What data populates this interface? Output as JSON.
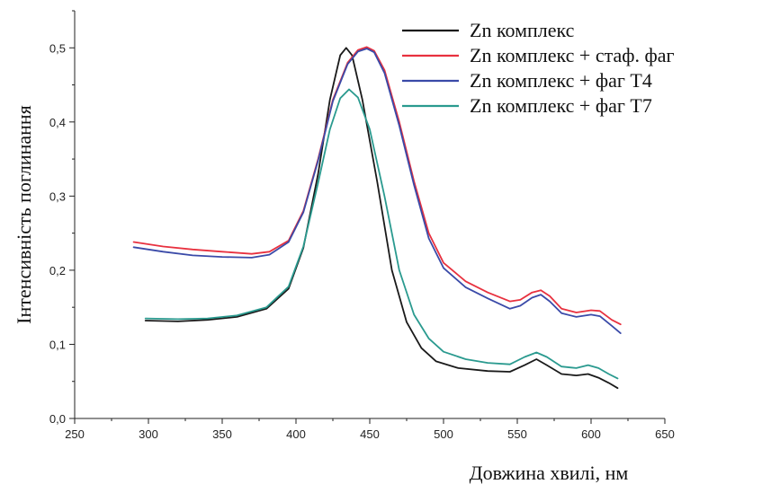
{
  "chart_data": {
    "type": "line",
    "title": "",
    "xlabel": "Довжина хвилі, нм",
    "ylabel": "Інтенсивність поглинання",
    "xlim": [
      250,
      650
    ],
    "ylim": [
      0,
      0.55
    ],
    "x_ticks": [
      250,
      300,
      350,
      400,
      450,
      500,
      550,
      600,
      650
    ],
    "x_tick_labels": [
      "250",
      "300",
      "350",
      "400",
      "450",
      "500",
      "550",
      "600",
      "650"
    ],
    "y_ticks": [
      0,
      0.1,
      0.2,
      0.3,
      0.4,
      0.5
    ],
    "y_tick_labels": [
      "0,0",
      "0,1",
      "0,2",
      "0,3",
      "0,4",
      "0,5"
    ],
    "grid": false,
    "legend_position": "top-right",
    "series": [
      {
        "name": "Zn комплекс",
        "color": "#1a1a1a",
        "points": [
          [
            298,
            0.132
          ],
          [
            320,
            0.131
          ],
          [
            340,
            0.133
          ],
          [
            360,
            0.137
          ],
          [
            380,
            0.148
          ],
          [
            395,
            0.175
          ],
          [
            405,
            0.23
          ],
          [
            415,
            0.33
          ],
          [
            423,
            0.43
          ],
          [
            430,
            0.49
          ],
          [
            434,
            0.5
          ],
          [
            438,
            0.49
          ],
          [
            445,
            0.43
          ],
          [
            455,
            0.32
          ],
          [
            465,
            0.2
          ],
          [
            475,
            0.13
          ],
          [
            485,
            0.095
          ],
          [
            495,
            0.077
          ],
          [
            510,
            0.068
          ],
          [
            530,
            0.064
          ],
          [
            545,
            0.063
          ],
          [
            555,
            0.072
          ],
          [
            563,
            0.08
          ],
          [
            570,
            0.072
          ],
          [
            580,
            0.06
          ],
          [
            590,
            0.058
          ],
          [
            598,
            0.06
          ],
          [
            605,
            0.055
          ],
          [
            612,
            0.048
          ],
          [
            618,
            0.041
          ]
        ]
      },
      {
        "name": "Zn комплекс + стаф. фаг",
        "color": "#e8313f",
        "points": [
          [
            290,
            0.238
          ],
          [
            310,
            0.232
          ],
          [
            330,
            0.228
          ],
          [
            350,
            0.225
          ],
          [
            370,
            0.222
          ],
          [
            382,
            0.225
          ],
          [
            395,
            0.24
          ],
          [
            405,
            0.28
          ],
          [
            415,
            0.35
          ],
          [
            425,
            0.43
          ],
          [
            435,
            0.48
          ],
          [
            442,
            0.497
          ],
          [
            448,
            0.501
          ],
          [
            453,
            0.496
          ],
          [
            460,
            0.47
          ],
          [
            470,
            0.4
          ],
          [
            480,
            0.32
          ],
          [
            490,
            0.25
          ],
          [
            500,
            0.21
          ],
          [
            515,
            0.185
          ],
          [
            530,
            0.17
          ],
          [
            545,
            0.158
          ],
          [
            552,
            0.16
          ],
          [
            560,
            0.17
          ],
          [
            566,
            0.173
          ],
          [
            572,
            0.165
          ],
          [
            580,
            0.148
          ],
          [
            590,
            0.143
          ],
          [
            600,
            0.146
          ],
          [
            606,
            0.145
          ],
          [
            614,
            0.133
          ],
          [
            620,
            0.127
          ]
        ]
      },
      {
        "name": "Zn комплекс + фаг Т4",
        "color": "#3a4aa8",
        "points": [
          [
            290,
            0.231
          ],
          [
            310,
            0.225
          ],
          [
            330,
            0.22
          ],
          [
            350,
            0.218
          ],
          [
            370,
            0.217
          ],
          [
            382,
            0.221
          ],
          [
            395,
            0.238
          ],
          [
            405,
            0.278
          ],
          [
            415,
            0.348
          ],
          [
            425,
            0.428
          ],
          [
            435,
            0.478
          ],
          [
            442,
            0.495
          ],
          [
            448,
            0.499
          ],
          [
            453,
            0.494
          ],
          [
            460,
            0.466
          ],
          [
            470,
            0.395
          ],
          [
            480,
            0.315
          ],
          [
            490,
            0.243
          ],
          [
            500,
            0.203
          ],
          [
            515,
            0.177
          ],
          [
            530,
            0.162
          ],
          [
            545,
            0.148
          ],
          [
            552,
            0.152
          ],
          [
            560,
            0.163
          ],
          [
            566,
            0.167
          ],
          [
            572,
            0.158
          ],
          [
            580,
            0.142
          ],
          [
            590,
            0.137
          ],
          [
            600,
            0.14
          ],
          [
            606,
            0.138
          ],
          [
            614,
            0.125
          ],
          [
            620,
            0.115
          ]
        ]
      },
      {
        "name": "Zn комплекс + фаг Т7",
        "color": "#2a9a8f",
        "points": [
          [
            298,
            0.135
          ],
          [
            320,
            0.134
          ],
          [
            340,
            0.135
          ],
          [
            360,
            0.139
          ],
          [
            380,
            0.15
          ],
          [
            395,
            0.178
          ],
          [
            405,
            0.232
          ],
          [
            415,
            0.318
          ],
          [
            423,
            0.39
          ],
          [
            430,
            0.432
          ],
          [
            436,
            0.444
          ],
          [
            442,
            0.433
          ],
          [
            450,
            0.39
          ],
          [
            460,
            0.3
          ],
          [
            470,
            0.2
          ],
          [
            480,
            0.14
          ],
          [
            490,
            0.108
          ],
          [
            500,
            0.09
          ],
          [
            515,
            0.08
          ],
          [
            530,
            0.075
          ],
          [
            545,
            0.073
          ],
          [
            555,
            0.083
          ],
          [
            563,
            0.089
          ],
          [
            570,
            0.083
          ],
          [
            580,
            0.07
          ],
          [
            590,
            0.068
          ],
          [
            598,
            0.072
          ],
          [
            605,
            0.068
          ],
          [
            612,
            0.06
          ],
          [
            618,
            0.054
          ]
        ]
      }
    ]
  }
}
